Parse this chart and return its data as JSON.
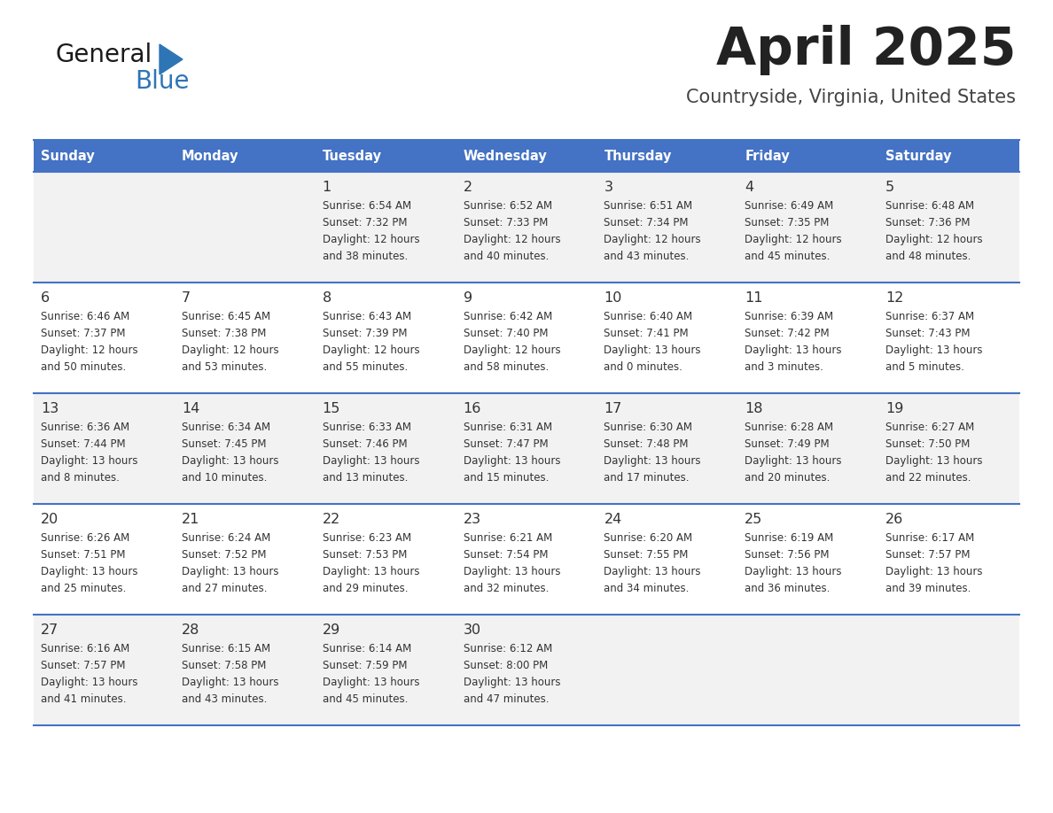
{
  "title": "April 2025",
  "subtitle": "Countryside, Virginia, United States",
  "header_bg": "#4472C4",
  "header_text_color": "#FFFFFF",
  "row_bg_odd": "#F2F2F2",
  "row_bg_even": "#FFFFFF",
  "border_color": "#4472C4",
  "day_headers": [
    "Sunday",
    "Monday",
    "Tuesday",
    "Wednesday",
    "Thursday",
    "Friday",
    "Saturday"
  ],
  "weeks": [
    [
      {
        "day": "",
        "sunrise": "",
        "sunset": "",
        "daylight": ""
      },
      {
        "day": "",
        "sunrise": "",
        "sunset": "",
        "daylight": ""
      },
      {
        "day": "1",
        "sunrise": "Sunrise: 6:54 AM",
        "sunset": "Sunset: 7:32 PM",
        "daylight": "Daylight: 12 hours\nand 38 minutes."
      },
      {
        "day": "2",
        "sunrise": "Sunrise: 6:52 AM",
        "sunset": "Sunset: 7:33 PM",
        "daylight": "Daylight: 12 hours\nand 40 minutes."
      },
      {
        "day": "3",
        "sunrise": "Sunrise: 6:51 AM",
        "sunset": "Sunset: 7:34 PM",
        "daylight": "Daylight: 12 hours\nand 43 minutes."
      },
      {
        "day": "4",
        "sunrise": "Sunrise: 6:49 AM",
        "sunset": "Sunset: 7:35 PM",
        "daylight": "Daylight: 12 hours\nand 45 minutes."
      },
      {
        "day": "5",
        "sunrise": "Sunrise: 6:48 AM",
        "sunset": "Sunset: 7:36 PM",
        "daylight": "Daylight: 12 hours\nand 48 minutes."
      }
    ],
    [
      {
        "day": "6",
        "sunrise": "Sunrise: 6:46 AM",
        "sunset": "Sunset: 7:37 PM",
        "daylight": "Daylight: 12 hours\nand 50 minutes."
      },
      {
        "day": "7",
        "sunrise": "Sunrise: 6:45 AM",
        "sunset": "Sunset: 7:38 PM",
        "daylight": "Daylight: 12 hours\nand 53 minutes."
      },
      {
        "day": "8",
        "sunrise": "Sunrise: 6:43 AM",
        "sunset": "Sunset: 7:39 PM",
        "daylight": "Daylight: 12 hours\nand 55 minutes."
      },
      {
        "day": "9",
        "sunrise": "Sunrise: 6:42 AM",
        "sunset": "Sunset: 7:40 PM",
        "daylight": "Daylight: 12 hours\nand 58 minutes."
      },
      {
        "day": "10",
        "sunrise": "Sunrise: 6:40 AM",
        "sunset": "Sunset: 7:41 PM",
        "daylight": "Daylight: 13 hours\nand 0 minutes."
      },
      {
        "day": "11",
        "sunrise": "Sunrise: 6:39 AM",
        "sunset": "Sunset: 7:42 PM",
        "daylight": "Daylight: 13 hours\nand 3 minutes."
      },
      {
        "day": "12",
        "sunrise": "Sunrise: 6:37 AM",
        "sunset": "Sunset: 7:43 PM",
        "daylight": "Daylight: 13 hours\nand 5 minutes."
      }
    ],
    [
      {
        "day": "13",
        "sunrise": "Sunrise: 6:36 AM",
        "sunset": "Sunset: 7:44 PM",
        "daylight": "Daylight: 13 hours\nand 8 minutes."
      },
      {
        "day": "14",
        "sunrise": "Sunrise: 6:34 AM",
        "sunset": "Sunset: 7:45 PM",
        "daylight": "Daylight: 13 hours\nand 10 minutes."
      },
      {
        "day": "15",
        "sunrise": "Sunrise: 6:33 AM",
        "sunset": "Sunset: 7:46 PM",
        "daylight": "Daylight: 13 hours\nand 13 minutes."
      },
      {
        "day": "16",
        "sunrise": "Sunrise: 6:31 AM",
        "sunset": "Sunset: 7:47 PM",
        "daylight": "Daylight: 13 hours\nand 15 minutes."
      },
      {
        "day": "17",
        "sunrise": "Sunrise: 6:30 AM",
        "sunset": "Sunset: 7:48 PM",
        "daylight": "Daylight: 13 hours\nand 17 minutes."
      },
      {
        "day": "18",
        "sunrise": "Sunrise: 6:28 AM",
        "sunset": "Sunset: 7:49 PM",
        "daylight": "Daylight: 13 hours\nand 20 minutes."
      },
      {
        "day": "19",
        "sunrise": "Sunrise: 6:27 AM",
        "sunset": "Sunset: 7:50 PM",
        "daylight": "Daylight: 13 hours\nand 22 minutes."
      }
    ],
    [
      {
        "day": "20",
        "sunrise": "Sunrise: 6:26 AM",
        "sunset": "Sunset: 7:51 PM",
        "daylight": "Daylight: 13 hours\nand 25 minutes."
      },
      {
        "day": "21",
        "sunrise": "Sunrise: 6:24 AM",
        "sunset": "Sunset: 7:52 PM",
        "daylight": "Daylight: 13 hours\nand 27 minutes."
      },
      {
        "day": "22",
        "sunrise": "Sunrise: 6:23 AM",
        "sunset": "Sunset: 7:53 PM",
        "daylight": "Daylight: 13 hours\nand 29 minutes."
      },
      {
        "day": "23",
        "sunrise": "Sunrise: 6:21 AM",
        "sunset": "Sunset: 7:54 PM",
        "daylight": "Daylight: 13 hours\nand 32 minutes."
      },
      {
        "day": "24",
        "sunrise": "Sunrise: 6:20 AM",
        "sunset": "Sunset: 7:55 PM",
        "daylight": "Daylight: 13 hours\nand 34 minutes."
      },
      {
        "day": "25",
        "sunrise": "Sunrise: 6:19 AM",
        "sunset": "Sunset: 7:56 PM",
        "daylight": "Daylight: 13 hours\nand 36 minutes."
      },
      {
        "day": "26",
        "sunrise": "Sunrise: 6:17 AM",
        "sunset": "Sunset: 7:57 PM",
        "daylight": "Daylight: 13 hours\nand 39 minutes."
      }
    ],
    [
      {
        "day": "27",
        "sunrise": "Sunrise: 6:16 AM",
        "sunset": "Sunset: 7:57 PM",
        "daylight": "Daylight: 13 hours\nand 41 minutes."
      },
      {
        "day": "28",
        "sunrise": "Sunrise: 6:15 AM",
        "sunset": "Sunset: 7:58 PM",
        "daylight": "Daylight: 13 hours\nand 43 minutes."
      },
      {
        "day": "29",
        "sunrise": "Sunrise: 6:14 AM",
        "sunset": "Sunset: 7:59 PM",
        "daylight": "Daylight: 13 hours\nand 45 minutes."
      },
      {
        "day": "30",
        "sunrise": "Sunrise: 6:12 AM",
        "sunset": "Sunset: 8:00 PM",
        "daylight": "Daylight: 13 hours\nand 47 minutes."
      },
      {
        "day": "",
        "sunrise": "",
        "sunset": "",
        "daylight": ""
      },
      {
        "day": "",
        "sunrise": "",
        "sunset": "",
        "daylight": ""
      },
      {
        "day": "",
        "sunrise": "",
        "sunset": "",
        "daylight": ""
      }
    ]
  ],
  "logo_triangle_color": "#2E75B6",
  "title_color": "#222222",
  "subtitle_color": "#444444",
  "cell_text_color": "#333333"
}
